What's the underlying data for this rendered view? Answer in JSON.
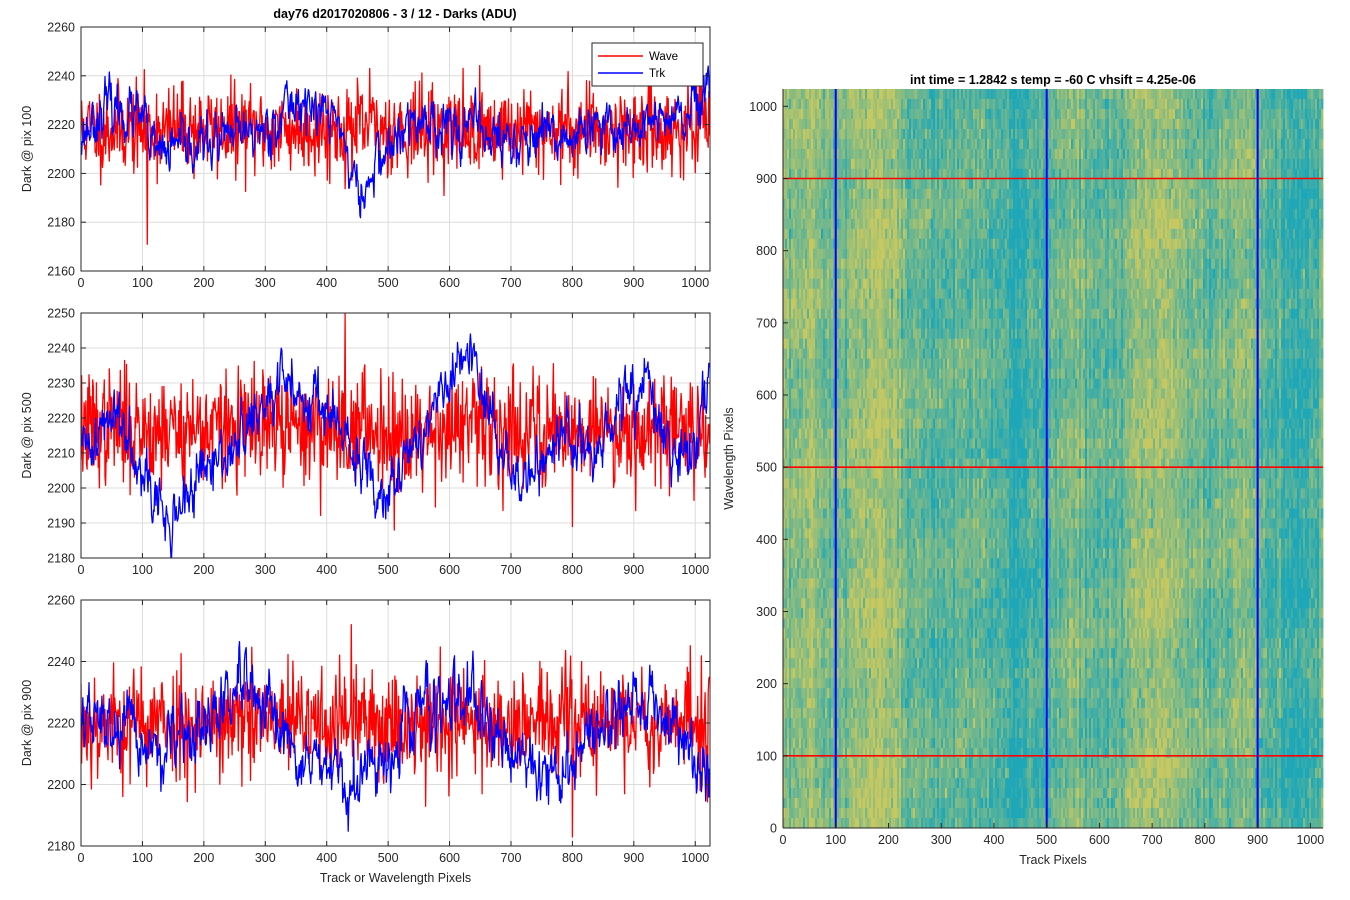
{
  "figure": {
    "suptitle": "day76 d2017020806 - 3 / 12 - Darks (ADU)",
    "colors": {
      "wave": "#ff0000",
      "trk": "#0000ff",
      "grid": "#dcdcdc",
      "axis": "#262626",
      "heat_low": "#1ea7b8",
      "heat_high": "#c8c860"
    }
  },
  "chart_data": [
    {
      "type": "line",
      "ylabel": "Dark @ pix 100",
      "xlabel": "",
      "xlim": [
        0,
        1024
      ],
      "ylim": [
        2160,
        2260
      ],
      "xticks": [
        0,
        100,
        200,
        300,
        400,
        500,
        600,
        700,
        800,
        900,
        1000
      ],
      "yticks": [
        2160,
        2180,
        2200,
        2220,
        2240,
        2260
      ],
      "grid": true,
      "legend": {
        "placement": "top-right",
        "entries": [
          "Wave",
          "Trk"
        ]
      },
      "series": [
        {
          "name": "Wave",
          "color": "#ff0000",
          "mean": 2218,
          "noise": 9,
          "seed": 11,
          "note_points": [
            [
              108,
              2171
            ],
            [
              470,
              2243
            ],
            [
              823,
              2238
            ],
            [
              1010,
              2243
            ]
          ]
        },
        {
          "name": "Trk",
          "color": "#0000ff",
          "mean": 2218,
          "noise": 5,
          "seed": 23,
          "trend": [
            [
              0,
              2215
            ],
            [
              40,
              2228
            ],
            [
              100,
              2222
            ],
            [
              120,
              2208
            ],
            [
              200,
              2212
            ],
            [
              300,
              2218
            ],
            [
              350,
              2230
            ],
            [
              420,
              2222
            ],
            [
              440,
              2200
            ],
            [
              460,
              2188
            ],
            [
              480,
              2205
            ],
            [
              550,
              2222
            ],
            [
              650,
              2218
            ],
            [
              700,
              2212
            ],
            [
              800,
              2215
            ],
            [
              900,
              2220
            ],
            [
              980,
              2222
            ],
            [
              1024,
              2232
            ]
          ]
        }
      ]
    },
    {
      "type": "line",
      "ylabel": "Dark @ pix 500",
      "xlabel": "",
      "xlim": [
        0,
        1024
      ],
      "ylim": [
        2180,
        2250
      ],
      "xticks": [
        0,
        100,
        200,
        300,
        400,
        500,
        600,
        700,
        800,
        900,
        1000
      ],
      "yticks": [
        2180,
        2190,
        2200,
        2210,
        2220,
        2230,
        2240,
        2250
      ],
      "grid": true,
      "series": [
        {
          "name": "Wave",
          "color": "#ff0000",
          "mean": 2217,
          "noise": 8,
          "seed": 37,
          "note_points": [
            [
              430,
              2250
            ],
            [
              510,
              2188
            ],
            [
              800,
              2189
            ]
          ]
        },
        {
          "name": "Trk",
          "color": "#0000ff",
          "mean": 2215,
          "noise": 4,
          "seed": 41,
          "trend": [
            [
              0,
              2210
            ],
            [
              60,
              2222
            ],
            [
              100,
              2208
            ],
            [
              140,
              2188
            ],
            [
              180,
              2200
            ],
            [
              260,
              2214
            ],
            [
              330,
              2230
            ],
            [
              400,
              2224
            ],
            [
              430,
              2212
            ],
            [
              480,
              2200
            ],
            [
              520,
              2205
            ],
            [
              600,
              2230
            ],
            [
              630,
              2238
            ],
            [
              680,
              2214
            ],
            [
              720,
              2200
            ],
            [
              780,
              2216
            ],
            [
              840,
              2208
            ],
            [
              880,
              2224
            ],
            [
              920,
              2230
            ],
            [
              960,
              2208
            ],
            [
              1000,
              2212
            ],
            [
              1024,
              2236
            ]
          ]
        }
      ]
    },
    {
      "type": "line",
      "ylabel": "Dark @ pix 900",
      "xlabel": "Track or Wavelength Pixels",
      "xlim": [
        0,
        1024
      ],
      "ylim": [
        2180,
        2260
      ],
      "xticks": [
        0,
        100,
        200,
        300,
        400,
        500,
        600,
        700,
        800,
        900,
        1000
      ],
      "yticks": [
        2180,
        2200,
        2220,
        2240,
        2260
      ],
      "grid": true,
      "series": [
        {
          "name": "Wave",
          "color": "#ff0000",
          "mean": 2220,
          "noise": 9,
          "seed": 53,
          "note_points": [
            [
              440,
              2252
            ],
            [
              800,
              2183
            ],
            [
              815,
              2240
            ]
          ]
        },
        {
          "name": "Trk",
          "color": "#0000ff",
          "mean": 2218,
          "noise": 5,
          "seed": 67,
          "trend": [
            [
              0,
              2222
            ],
            [
              80,
              2216
            ],
            [
              130,
              2210
            ],
            [
              200,
              2218
            ],
            [
              260,
              2232
            ],
            [
              330,
              2214
            ],
            [
              380,
              2206
            ],
            [
              440,
              2198
            ],
            [
              500,
              2210
            ],
            [
              560,
              2228
            ],
            [
              640,
              2224
            ],
            [
              700,
              2212
            ],
            [
              780,
              2202
            ],
            [
              840,
              2218
            ],
            [
              900,
              2228
            ],
            [
              960,
              2222
            ],
            [
              1024,
              2200
            ]
          ]
        }
      ]
    },
    {
      "type": "heatmap",
      "title": "int time = 1.2842 s    temp = -60 C    vhsift = 4.25e-06",
      "xlabel": "Track Pixels",
      "ylabel": "Wavelength Pixels",
      "xlim": [
        0,
        1024
      ],
      "ylim": [
        0,
        1024
      ],
      "xticks": [
        0,
        100,
        200,
        300,
        400,
        500,
        600,
        700,
        800,
        900,
        1000
      ],
      "yticks": [
        0,
        100,
        200,
        300,
        400,
        500,
        600,
        700,
        800,
        900,
        1000
      ],
      "grid": false,
      "colormap": [
        "#1ea7b8",
        "#c8c860"
      ],
      "overlay_vertical_lines": {
        "color": "#0000ff",
        "x": [
          100,
          500,
          900
        ]
      },
      "overlay_horizontal_lines": {
        "color": "#ff0000",
        "y": [
          100,
          500,
          900
        ]
      }
    }
  ]
}
